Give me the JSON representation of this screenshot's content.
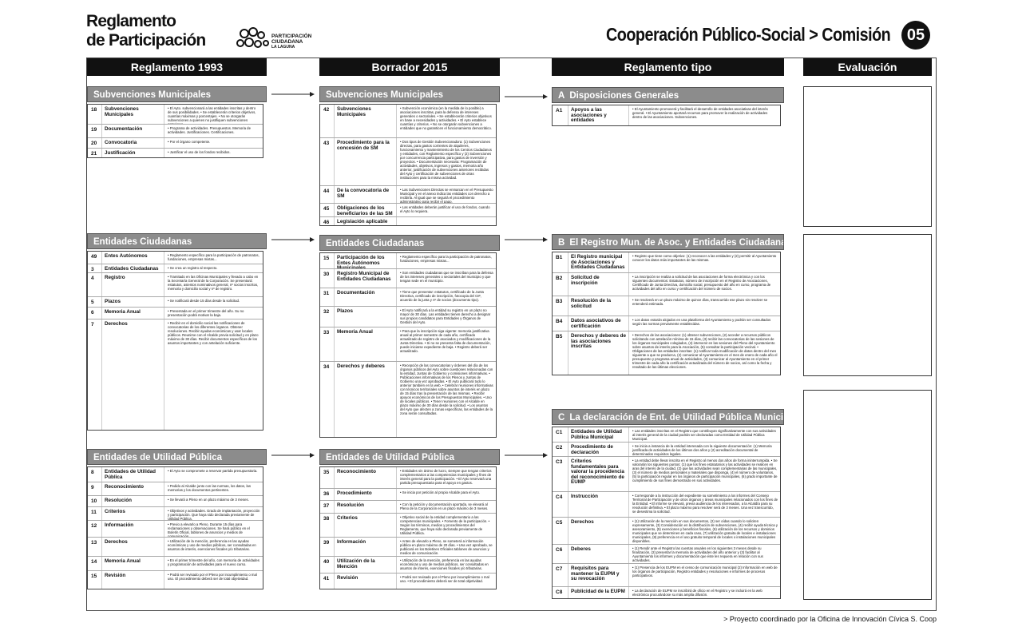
{
  "header": {
    "brand_line1": "Reglamento",
    "brand_line2": "de Participación",
    "logo_line1": "PARTICIPACIÓN",
    "logo_line2": "CIUDADANA",
    "logo_line3": "LA LAGUNA",
    "title": "Cooperación Público-Social > Comisión",
    "number": "05"
  },
  "columns": [
    {
      "title": "Reglamento 1993",
      "sections": [
        {
          "title": "Subvenciones Municipales",
          "rows": [
            {
              "num": "18",
              "name": "Subvenciones Municipales",
              "text": "• El Ayto. subvencionará a las entidades inscritas y dentro de sus posibilidades. • Se establecerán criterios objetivos, cuantías máximas y porcentajes. • No se otorgarán subvenciones a quienes no justifiquen subvenciones anteriores."
            },
            {
              "num": "19",
              "name": "Documentación",
              "text": "• Programa de actividades. Presupuestos. Memoria de actividades. Justificaciones. Certificaciones."
            },
            {
              "num": "20",
              "name": "Convocatoria",
              "text": "• Por el órgano competente."
            },
            {
              "num": "21",
              "name": "Justificación",
              "text": "• Justificar el uso de los fondos recibidos."
            }
          ]
        },
        {
          "title": "Entidades Ciudadanas",
          "rows": [
            {
              "num": "49",
              "name": "Entes Autónomos",
              "text": "• Reglamento específico para la participación de patronatos, fundaciones, empresas mixtas..."
            },
            {
              "num": "3",
              "name": "Entidades Ciudadanas",
              "text": "• Se crea un registro al respecto."
            },
            {
              "num": "4",
              "name": "Registro",
              "text": "• Tramitado en las Oficinas Municipales y llevado a cabo en la Secretaría General de la Corporación. Se presentará: estatutos, asientos nominativos general, nº socios inscritos, memoria y domicilio social y nº de registro."
            },
            {
              "num": "5",
              "name": "Plazos",
              "text": "• Se notificará desde 15 días desde la solicitud."
            },
            {
              "num": "6",
              "name": "Memoria Anual",
              "text": "• Presentada en el primer trimestre del año. Su no presentación podrá motivar la baja."
            },
            {
              "num": "7",
              "name": "Derechos",
              "text": "• Recibir en el domicilio social las notificaciones de convocatorias de los diferentes órganos. Obtener resoluciones. Recibir ayudas económicas y usar locales públicos. Reunirse con el Alcalde previa solicitud y en plazo máximo de 30 días. Recibir documentos específicos de los asuntos importantes y con antelación suficiente."
            }
          ]
        },
        {
          "title": "Entidades de Utilidad Pública",
          "rows": [
            {
              "num": "8",
              "name": "Entidades de Utilidad Pública",
              "text": "• El Ayto se compromete a reservar partida presupuestaria."
            },
            {
              "num": "9",
              "name": "Reconocimiento",
              "text": "• Pedido al Alcalde junto con las normas, los datos, las memorias y los documentos pertinentes."
            },
            {
              "num": "10",
              "name": "Resolución",
              "text": "• Se llevará a Pleno en un plazo máximo de 3 meses."
            },
            {
              "num": "11",
              "name": "Criterios",
              "text": "• Objetivos y actividades. Grado de implantación, proyección y participación. Que haya sido declarada previamente de Utilidad Pública."
            },
            {
              "num": "12",
              "name": "Información",
              "text": "• Previo a elevarlo a Pleno. Durante 15 días para reclamaciones y observaciones. Se hará público en el Boletín Oficial, tablones de anuncios y medios de comunicación."
            },
            {
              "num": "13",
              "name": "Derechos",
              "text": "• Utilización de la mención, preferencia en las ayudas económicas y uso de medios públicos, ser consultadas en asuntos de interés, exenciones fiscales y/o tributarias."
            },
            {
              "num": "14",
              "name": "Memoria Anual",
              "text": "• En el primer trimestre del año, con memoria de actividades y programación de actividades para el nuevo curso."
            },
            {
              "num": "15",
              "name": "Revisión",
              "text": "• Podrá ser revisado por el Pleno por incumplimiento o mal uso. El procedimiento deberá ser de total objetividad."
            }
          ]
        }
      ]
    },
    {
      "title": "Borrador 2015",
      "sections": [
        {
          "title": "Subvenciones Municipales",
          "rows": [
            {
              "num": "42",
              "name": "Subvenciones Municipales",
              "text": "• Subvención económica (en la medida de lo posible) a asociaciones inscritas, para la defensa de intereses generales o sectoriales. • Se establecerán criterios objetivos en base a necesidades y actividades. • El Ayto establece cuantías y criterios. • No se otorgarán subvenciones a entidades que no garanticen el funcionamiento democrático."
            },
            {
              "num": "43",
              "name": "Procedimiento para la concesión de SM",
              "text": "• Dos tipos de Gestión Subvencionadora: (1) Subvenciones directas, para gastos corrientes de alquileres, funcionamiento y mantenimiento de los Centros Ciudadanos y entidades, con Reglamento específico y (2) Subvenciones por concurrencia participativa, para gastos de inversión y proyectos. • Documentación necesaria: Programación de actividades, objetivos, ingresos y gastos, memoria año anterior, justificación de subvenciones anteriores recibidas del Ayto y certificación de subvenciones de otras instituciones para la misma actividad."
            },
            {
              "num": "44",
              "name": "De la convocatoria de SM",
              "text": "• Las Subvenciones Directas se enmarcan en el Presupuesto Municipal y en el anexo indica las entidades con derecho a recibirla. Al igual que se seguirá el procedimiento administrativo para recibir el pago."
            },
            {
              "num": "45",
              "name": "Obligaciones de los beneficiarios de las SM",
              "text": "• Las entidades deberán justificar el uso de fondos, cuando el Ayto lo requiera."
            },
            {
              "num": "46",
              "name": "Legislación aplicable"
            }
          ]
        },
        {
          "title": "Entidades Ciudadanas",
          "rows": [
            {
              "num": "15",
              "name": "Participación de los Entes Autónomos Municipales",
              "text": "• Reglamento específico para la participación de patronatos, fundaciones, empresas mixtas..."
            },
            {
              "num": "30",
              "name": "Registro Municipal de Entidades Ciudadanas",
              "text": "• Son entidades ciudadanas que se inscriban para la defensa de los intereses generales o sectoriales del municipio y que tengan sede en el municipio."
            },
            {
              "num": "31",
              "name": "Documentación",
              "text": "• Tiene que presentar: estatutos, certificado de la Junta Directiva, certificado de inscripción, fotocopia del CIF, acuerdo de la junta y nº de socios (documento tipo)."
            },
            {
              "num": "32",
              "name": "Plazos",
              "text": "• El Ayto notificará a la entidad su registro en un plazo no mayor de 30 días. Las entidades tienen derecho a designar sus propios candidatos para Entidades y Órganos de Gestión del Ayto."
            },
            {
              "num": "33",
              "name": "Memoria Anual",
              "text": "• Para que la inscripción siga vigente: memoria justificativa anual al primer semestre de cada año, certificado actualizado de registro de asociados y modificaciones de la Junta Directiva. • Si no se presenta falta de documentación, puede iniciarse expediente de baja. • Registro deberá ser actualizado."
            },
            {
              "num": "34",
              "name": "Derechos y deberes",
              "text": "• Recepción de las convocatorias y órdenes del día de los órganos públicos del Ayto sobre cuestiones relacionadas con la entidad, Juntas de Gobierno y comisiones informativas. • Publicaciones informativas de los Plenos y Juntas de Gobierno una vez aprobadas. • El Ayto publicará todo lo anterior también en la web. • Celebrar reuniones informativas con técnicos territoriales sobre asuntos de interés en plazo de 15 días tras la presentación de las mismas. • Recibir apoyos económicos de los Presupuestos Municipales. • Uso de locales públicos. • Tener reuniones con el Alcalde en plazo máximo de 30 días desde la solicitud. • Los asuntos del Ayto que afecten a zonas específicas, las entidades de la zona serán consultadas."
            }
          ]
        },
        {
          "title": "Entidades de Utilidad Pública",
          "rows": [
            {
              "num": "35",
              "name": "Reconocimiento",
              "text": "• Entidades sin ánimo de lucro, siempre que tengan criterios complementarios a las competencias municipales y fines de interés general para la participación. • El Ayto reservará una partida presupuestaria para el apoyo en gastos."
            },
            {
              "num": "36",
              "name": "Procedimiento",
              "text": "• Se inicia por petición al propio Alcalde para el Ayto."
            },
            {
              "num": "37",
              "name": "Resolución",
              "text": "• Con la petición y documentación aportada, se elevará al Pleno de la Corporación en un plazo máximo de 3 meses."
            },
            {
              "num": "38",
              "name": "Criterios",
              "text": "• Objetivo social de la entidad complementario a las competencias municipales. • Fomento de la participación. • Según los términos, medios y procedimientos del Reglamento, que haya sido declarada previamente de Utilidad Pública."
            },
            {
              "num": "39",
              "name": "Información",
              "text": "• Antes de elevarlo a Pleno, se someterá a información pública en plazo máximo de 20 días. • Una vez aprobado, se publicará en los Boletines Oficiales tablones de anuncios y medios de comunicación."
            },
            {
              "num": "40",
              "name": "Utilización de la Mención",
              "text": "• Utilización de la mención, preferencia en las ayudas económicas y uso de medios públicos, ser consultadas en asuntos de interés, exenciones fiscales y/o tributarias."
            },
            {
              "num": "41",
              "name": "Revisión",
              "text": "• Podrá ser revisado por el Pleno por incumplimiento o mal uso. • El procedimiento deberá ser de total objetividad."
            }
          ]
        }
      ]
    },
    {
      "title": "Reglamento tipo",
      "sections": [
        {
          "letter": "A",
          "title": "Disposiciones Generales",
          "rows": [
            {
              "num": "A1",
              "name": "Apoyos a las asociaciones y entidades",
              "text": "• El Ayuntamiento promoverá y facilitará el desarrollo de entidades asociativas del interés general. • El Ayuntamiento aportará recursos para promover la realización de actividades dentro de las asociaciones. Subvenciones."
            }
          ]
        },
        {
          "letter": "B",
          "title": "El Registro Mun. de Asoc. y Entidades Ciudadanas",
          "rows": [
            {
              "num": "B1",
              "name": "El Registro municipal de Asociaciones y Entidades Ciudadanas",
              "text": "• Registro que tiene como objetivo: (1) reconocer a las entidades y (2) permitir al Ayuntamiento conocer los datos más importantes de las mismas."
            },
            {
              "num": "B2",
              "name": "Solicitud de inscripción",
              "text": "• La inscripción se realiza a solicitud de las asociaciones de forma electrónica y con los siguientes documentos: Estatutos, número de inscripción en el Registro de Asociaciones, Certificado de Junta Directiva, domicilio social, presupuesto del año en curso, programa de actividades del año en curso y certificación del número de socios."
            },
            {
              "num": "B3",
              "name": "Resolución de la solicitud",
              "text": "• Se resolverá en un plazo máximo de quince días, transcurrido ese plazo sin resolver se entenderá estimada."
            },
            {
              "num": "B4",
              "name": "Datos asociativos de certificación",
              "text": "• Los datos estarán alojados en una plataforma del Ayuntamiento y podrán ser consultados según las normas previamente establecidas."
            },
            {
              "num": "B5",
              "name": "Derechos y deberes de las asociaciones inscritas",
              "text": "• Derechos de las asociaciones: (1) obtener subvenciones, (2) acceder a recursos públicos solicitando con antelación mínima de 15 días, (3) recibir las convocatorias de las sesiones de los órganos municipales colegiados, (4) intervenir en las sesiones del Pleno del Ayuntamiento sobre asuntos de interés para la Asociación, (5) consultar la participación vecinal. • Obligaciones de las entidades inscritas: (1) notificar toda modificación de datos dentro del mes siguiente a que se produzca, (2) comunicar al Ayuntamiento en el mes de enero de cada año el presupuesto y programa anual de actividades, (3) comunicar al Ayuntamiento en el primer trimestre de cada año la certificación actualizada del número de socios, así como la fecha y resultado de las últimas elecciones."
            }
          ]
        },
        {
          "letter": "C",
          "title": "La declaración de Ent. de Utilidad Pública Municipal",
          "rows": [
            {
              "num": "C1",
              "name": "Entidades de Utilidad Pública Municipal",
              "text": "• Las entidades inscritas en el Registro que contribuyan significativamente con sus actividades al interés general de la ciudad podrán ser declaradas como Entidad de Utilidad Pública Municipal."
            },
            {
              "num": "C2",
              "name": "Procedimiento de declaración",
              "text": "• Se inicia a instancia de la entidad interesada con la siguiente documentación: (1) Memoria justificada de actividades de los últimos dos años y (2) acreditación documental de determinados requisitos legales."
            },
            {
              "num": "C3",
              "name": "Criterios fundamentales para valorar la procedencia del reconocimiento de EUMP",
              "text": "• La entidad debe llevar inscrita en el Registro al menos dos años de forma ininterrumpida. • Se valorarán los siguientes puntos: (1) que los fines estatutarios y las actividades se realicen en aras del interés de la ciudad, (2) que las actividades sean complementarias de las municipales, (3) el número de medios personales y materiales que disponga, (4) el número de voluntarios, (5) la participación regular en los órganos de participación municipales, (6) grado importante de cumplimiento de sus fines demostrado en sus actividades."
            },
            {
              "num": "C4",
              "name": "Instrucción",
              "text": "• Corresponde a la instrucción del expediente su sometimiento a los informes del Consejo Territorial de Participación y de otros órganos y áreas municipales relacionados con los fines de la Entidad. • El informe se elevará, previa audiencia de los interesados, a la Alcaldía para su resolución definitiva. • El plazo máximo para resolver será de 3 meses. Una vez transcurrido, se desestima la solicitud."
            },
            {
              "num": "C5",
              "name": "Derechos",
              "text": "• (1) Utilización de la mención en sus documentos, (2) ser oídas cuando lo soliciten expresamente, (3) Consideración en la distribución de subvenciones, (4) recibir ayuda técnica y asesoramiento, (5) exenciones y beneficios fiscales, (6) utilización de los recursos y dominios municipales que se determinen en cada caso, (7) utilización gratuita de locales e instalaciones municipales, (8) preferencia en el uso gratuito temporal de locales o instalaciones municipales disponibles."
            },
            {
              "num": "C6",
              "name": "Deberes",
              "text": "• (1) Rendir ante el Registro las cuentas anuales en los siguientes 3 meses desde su finalización, (2) presentar la memoria de actividades del año anterior y (3) facilitar al Ayuntamiento los informes y documentación que éste les requiera en relación con sus actividades."
            },
            {
              "num": "C7",
              "name": "Requisitos para mantener la EUPM y su revocación",
              "text": "• (1) Presencia de los EUPM en el censo de comunicación municipal (2) Información en web de los órganos de participación, Registro entidades y resoluciones e informes de procesos participativos."
            },
            {
              "num": "C8",
              "name": "Publicidad de la EUPM",
              "text": "• La declaración de EUPM se inscribirá de oficio en el Registro y se incluirá en la web electrónica procurándose su más amplia difusión."
            }
          ]
        }
      ]
    },
    {
      "title": "Evaluación"
    }
  ],
  "footer": "> Proyecto coordinado por la Oficina de Innovación Cívica S. Coop"
}
